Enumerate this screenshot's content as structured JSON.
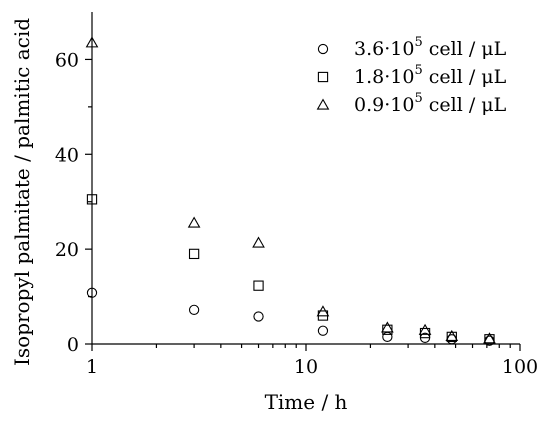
{
  "chart_data": {
    "type": "scatter",
    "x_scale": "log",
    "xlabel": "Time / h",
    "ylabel": "Isopropyl palmitate / palmitic acid",
    "xlim": [
      1,
      100
    ],
    "ylim": [
      0,
      70
    ],
    "x_ticks": [
      1,
      10,
      100
    ],
    "x_tick_labels": [
      "1",
      "10",
      "100"
    ],
    "y_ticks": [
      0,
      20,
      40,
      60
    ],
    "y_tick_labels": [
      "0",
      "20",
      "40",
      "60"
    ],
    "grid": false,
    "legend_position": "top-right",
    "series": [
      {
        "legend_main": "3.6·10",
        "legend_exp": "5",
        "legend_unit": " cell / μL",
        "marker": "circle",
        "points": [
          {
            "x": 1,
            "y": 10.8
          },
          {
            "x": 3,
            "y": 7.2
          },
          {
            "x": 6,
            "y": 5.8
          },
          {
            "x": 12,
            "y": 2.8
          },
          {
            "x": 24,
            "y": 1.5
          },
          {
            "x": 36,
            "y": 1.3
          },
          {
            "x": 48,
            "y": 1.0
          },
          {
            "x": 72,
            "y": 0.7
          }
        ]
      },
      {
        "legend_main": "1.8·10",
        "legend_exp": "5",
        "legend_unit": " cell / μL",
        "marker": "square",
        "points": [
          {
            "x": 1,
            "y": 30.5
          },
          {
            "x": 3,
            "y": 19.0
          },
          {
            "x": 6,
            "y": 12.3
          },
          {
            "x": 12,
            "y": 6.0
          },
          {
            "x": 24,
            "y": 3.0
          },
          {
            "x": 36,
            "y": 2.3
          },
          {
            "x": 48,
            "y": 1.5
          },
          {
            "x": 72,
            "y": 1.0
          }
        ]
      },
      {
        "legend_main": "0.9·10",
        "legend_exp": "5",
        "legend_unit": " cell / μL",
        "marker": "triangle",
        "points": [
          {
            "x": 1,
            "y": 63.5
          },
          {
            "x": 3,
            "y": 25.5
          },
          {
            "x": 6,
            "y": 21.3
          },
          {
            "x": 12,
            "y": 6.8
          },
          {
            "x": 24,
            "y": 3.4
          },
          {
            "x": 36,
            "y": 2.9
          },
          {
            "x": 48,
            "y": 1.6
          },
          {
            "x": 72,
            "y": 1.1
          }
        ]
      }
    ]
  }
}
